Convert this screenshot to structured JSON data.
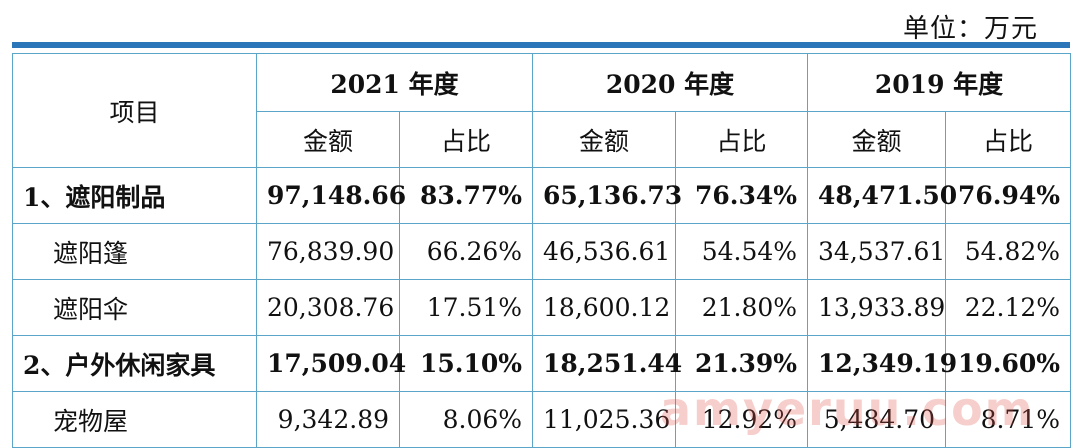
{
  "unit_label": "单位：万元",
  "header": {
    "item_label": "项目",
    "years": [
      "2021 年度",
      "2020 年度",
      "2019 年度"
    ],
    "amount_label": "金额",
    "ratio_label": "占比"
  },
  "rows": [
    {
      "label": "1、遮阳制品",
      "v": [
        "97,148.66",
        "83.77%",
        "65,136.73",
        "76.34%",
        "48,471.50",
        "76.94%"
      ]
    },
    {
      "label": "遮阳篷",
      "v": [
        "76,839.90",
        "66.26%",
        "46,536.61",
        "54.54%",
        "34,537.61",
        "54.82%"
      ]
    },
    {
      "label": "遮阳伞",
      "v": [
        "20,308.76",
        "17.51%",
        "18,600.12",
        "21.80%",
        "13,933.89",
        "22.12%"
      ]
    },
    {
      "label": "2、户外休闲家具",
      "v": [
        "17,509.04",
        "15.10%",
        "18,251.44",
        "21.39%",
        "12,349.19",
        "19.60%"
      ]
    },
    {
      "label": "宠物屋",
      "v": [
        "9,342.89",
        "8.06%",
        "11,025.36",
        "12.92%",
        "5,484.70",
        "8.71%"
      ]
    }
  ],
  "watermark": "amyeruu.com",
  "colors": {
    "accent_bar": "#2a76b8",
    "grid": "#5aa5c8"
  }
}
